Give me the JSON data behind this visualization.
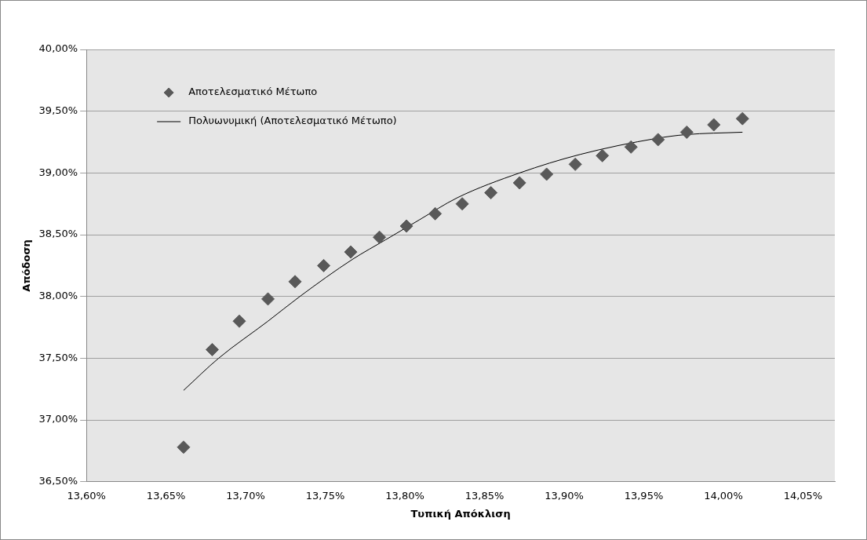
{
  "chart_data": {
    "type": "scatter",
    "xlabel": "Τυπική Απόκλιση",
    "ylabel": "Απόδοση",
    "xlim": [
      13.6,
      14.07
    ],
    "ylim": [
      36.5,
      40
    ],
    "xticks": [
      {
        "value": 13.6,
        "label": "13,60%"
      },
      {
        "value": 13.65,
        "label": "13,65%"
      },
      {
        "value": 13.7,
        "label": "13,70%"
      },
      {
        "value": 13.75,
        "label": "13,75%"
      },
      {
        "value": 13.8,
        "label": "13,80%"
      },
      {
        "value": 13.85,
        "label": "13,85%"
      },
      {
        "value": 13.9,
        "label": "13,90%"
      },
      {
        "value": 13.95,
        "label": "13,95%"
      },
      {
        "value": 14.0,
        "label": "14,00%"
      },
      {
        "value": 14.05,
        "label": "14,05%"
      }
    ],
    "yticks": [
      {
        "value": 36.5,
        "label": "36,50%"
      },
      {
        "value": 37,
        "label": "37,00%"
      },
      {
        "value": 37.5,
        "label": "37,50%"
      },
      {
        "value": 38,
        "label": "38,00%"
      },
      {
        "value": 38.5,
        "label": "38,50%"
      },
      {
        "value": 39,
        "label": "39,00%"
      },
      {
        "value": 39.5,
        "label": "39,50%"
      },
      {
        "value": 40,
        "label": "40,00%"
      }
    ],
    "grid": "y",
    "legend": "top left",
    "series": [
      {
        "name": "Αποτελεσματικό Μέτωπο",
        "type": "scatter",
        "marker": "diamond",
        "color": "#595959",
        "x": [
          13.661,
          13.679,
          13.696,
          13.714,
          13.731,
          13.749,
          13.766,
          13.784,
          13.801,
          13.819,
          13.836,
          13.854,
          13.872,
          13.889,
          13.907,
          13.924,
          13.942,
          13.959,
          13.977,
          13.994,
          14.012
        ],
        "values": [
          36.78,
          37.57,
          37.8,
          37.98,
          38.12,
          38.25,
          38.36,
          38.48,
          38.57,
          38.67,
          38.75,
          38.84,
          38.92,
          38.99,
          39.07,
          39.14,
          39.21,
          39.27,
          39.33,
          39.39,
          39.44
        ]
      },
      {
        "name": "Πολυωνυμική (Αποτελεσματικό Μέτωπο)",
        "type": "line",
        "marker": "none",
        "color": "#000000",
        "x": [
          13.661,
          13.683,
          13.714,
          13.734,
          13.767,
          13.788,
          13.809,
          13.833,
          13.872,
          13.91,
          13.958,
          13.976,
          14.012
        ],
        "values": [
          37.24,
          37.5,
          37.8,
          38.0,
          38.3,
          38.46,
          38.62,
          38.8,
          39.0,
          39.15,
          39.28,
          39.31,
          39.33
        ]
      }
    ]
  }
}
